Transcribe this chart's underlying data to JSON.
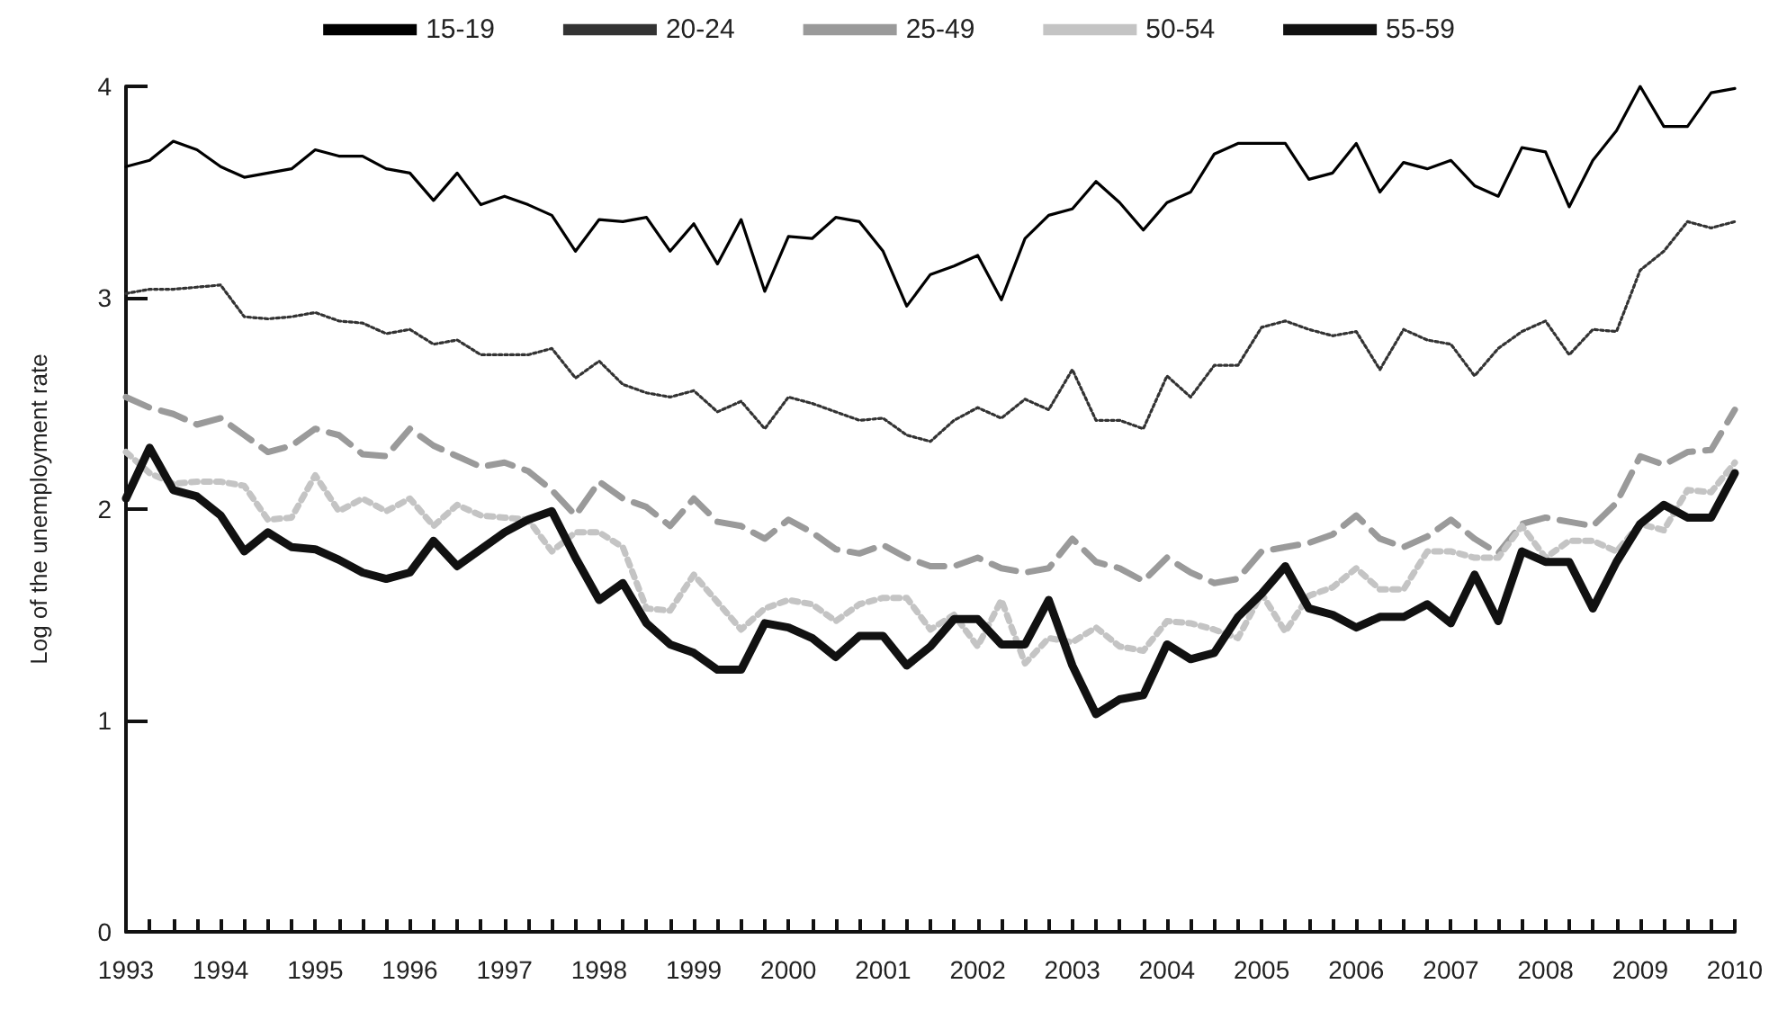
{
  "chart_data": {
    "type": "line",
    "ylabel": "Log of the unemployment rate",
    "categories": [
      "1993",
      null,
      null,
      null,
      "1994",
      null,
      null,
      null,
      "1995",
      null,
      null,
      null,
      "1996",
      null,
      null,
      null,
      "1997",
      null,
      null,
      null,
      "1998",
      null,
      null,
      null,
      "1999",
      null,
      null,
      null,
      "2000",
      null,
      null,
      null,
      "2001",
      null,
      null,
      null,
      "2002",
      null,
      null,
      null,
      "2003",
      null,
      null,
      null,
      "2004",
      null,
      null,
      null,
      "2005",
      null,
      null,
      null,
      "2006",
      null,
      null,
      null,
      "2007",
      null,
      null,
      null,
      "2008",
      null,
      null,
      null,
      "2009",
      null,
      null,
      null,
      "2010"
    ],
    "ylim": [
      0,
      4
    ],
    "yticks": [
      0,
      1,
      2,
      3,
      4
    ],
    "legend": "top",
    "marker": "none",
    "series": [
      {
        "name": "15-19",
        "color": "#000000",
        "line_style": "solid",
        "values": [
          3.62,
          3.65,
          3.74,
          3.7,
          3.62,
          3.57,
          3.59,
          3.61,
          3.7,
          3.67,
          3.67,
          3.61,
          3.59,
          3.46,
          3.59,
          3.44,
          3.48,
          3.44,
          3.39,
          3.22,
          3.37,
          3.36,
          3.38,
          3.22,
          3.35,
          3.16,
          3.37,
          3.03,
          3.29,
          3.28,
          3.38,
          3.36,
          3.22,
          2.96,
          3.11,
          3.15,
          3.2,
          2.99,
          3.28,
          3.39,
          3.42,
          3.55,
          3.45,
          3.32,
          3.45,
          3.5,
          3.68,
          3.73,
          3.73,
          3.73,
          3.56,
          3.59,
          3.73,
          3.5,
          3.64,
          3.61,
          3.65,
          3.53,
          3.48,
          3.71,
          3.69,
          3.43,
          3.65,
          3.79,
          4.0,
          3.81,
          3.81,
          3.97,
          3.99
        ]
      },
      {
        "name": "20-24",
        "color": "#333333",
        "line_style": "dotted",
        "values": [
          3.02,
          3.04,
          3.04,
          3.05,
          3.06,
          2.91,
          2.9,
          2.91,
          2.93,
          2.89,
          2.88,
          2.83,
          2.85,
          2.78,
          2.8,
          2.73,
          2.73,
          2.73,
          2.76,
          2.62,
          2.7,
          2.59,
          2.55,
          2.53,
          2.56,
          2.46,
          2.51,
          2.38,
          2.53,
          2.5,
          2.46,
          2.42,
          2.43,
          2.35,
          2.32,
          2.42,
          2.48,
          2.43,
          2.52,
          2.47,
          2.66,
          2.42,
          2.42,
          2.38,
          2.63,
          2.53,
          2.68,
          2.68,
          2.86,
          2.89,
          2.85,
          2.82,
          2.84,
          2.66,
          2.85,
          2.8,
          2.78,
          2.63,
          2.76,
          2.84,
          2.89,
          2.73,
          2.85,
          2.84,
          3.13,
          3.22,
          3.36,
          3.33,
          3.36
        ]
      },
      {
        "name": "25-49",
        "color": "#9a9a9a",
        "line_style": "dashed",
        "values": [
          2.53,
          2.48,
          2.45,
          2.4,
          2.43,
          2.35,
          2.27,
          2.3,
          2.38,
          2.35,
          2.26,
          2.25,
          2.38,
          2.3,
          2.25,
          2.2,
          2.22,
          2.18,
          2.09,
          1.97,
          2.13,
          2.05,
          2.01,
          1.92,
          2.05,
          1.94,
          1.92,
          1.86,
          1.95,
          1.89,
          1.81,
          1.79,
          1.83,
          1.77,
          1.73,
          1.73,
          1.77,
          1.72,
          1.7,
          1.72,
          1.86,
          1.75,
          1.72,
          1.66,
          1.77,
          1.7,
          1.65,
          1.67,
          1.8,
          1.82,
          1.84,
          1.88,
          1.97,
          1.86,
          1.82,
          1.87,
          1.95,
          1.86,
          1.79,
          1.93,
          1.96,
          1.94,
          1.92,
          2.03,
          2.25,
          2.21,
          2.27,
          2.28,
          2.47
        ]
      },
      {
        "name": "50-54",
        "color": "#c4c4c4",
        "line_style": "dotted",
        "values": [
          2.27,
          2.17,
          2.12,
          2.13,
          2.13,
          2.11,
          1.95,
          1.96,
          2.16,
          1.99,
          2.05,
          1.99,
          2.05,
          1.92,
          2.02,
          1.97,
          1.96,
          1.95,
          1.8,
          1.89,
          1.89,
          1.82,
          1.53,
          1.52,
          1.69,
          1.56,
          1.43,
          1.53,
          1.57,
          1.55,
          1.47,
          1.55,
          1.58,
          1.58,
          1.43,
          1.5,
          1.35,
          1.57,
          1.27,
          1.39,
          1.37,
          1.44,
          1.35,
          1.33,
          1.47,
          1.46,
          1.43,
          1.39,
          1.6,
          1.42,
          1.59,
          1.63,
          1.72,
          1.62,
          1.62,
          1.8,
          1.8,
          1.77,
          1.77,
          1.92,
          1.77,
          1.85,
          1.85,
          1.8,
          1.93,
          1.9,
          2.09,
          2.08,
          2.22
        ]
      },
      {
        "name": "55-59",
        "color": "#111111",
        "line_style": "solid",
        "values": [
          2.05,
          2.29,
          2.09,
          2.06,
          1.97,
          1.8,
          1.89,
          1.82,
          1.81,
          1.76,
          1.7,
          1.67,
          1.7,
          1.85,
          1.73,
          1.81,
          1.89,
          1.95,
          1.99,
          1.77,
          1.57,
          1.65,
          1.46,
          1.36,
          1.32,
          1.24,
          1.24,
          1.46,
          1.44,
          1.39,
          1.3,
          1.4,
          1.4,
          1.26,
          1.35,
          1.48,
          1.48,
          1.36,
          1.36,
          1.57,
          1.26,
          1.03,
          1.1,
          1.12,
          1.36,
          1.29,
          1.32,
          1.49,
          1.6,
          1.73,
          1.53,
          1.5,
          1.44,
          1.49,
          1.49,
          1.55,
          1.46,
          1.69,
          1.47,
          1.8,
          1.75,
          1.75,
          1.53,
          1.75,
          1.93,
          2.02,
          1.96,
          1.96,
          2.17
        ]
      }
    ]
  }
}
